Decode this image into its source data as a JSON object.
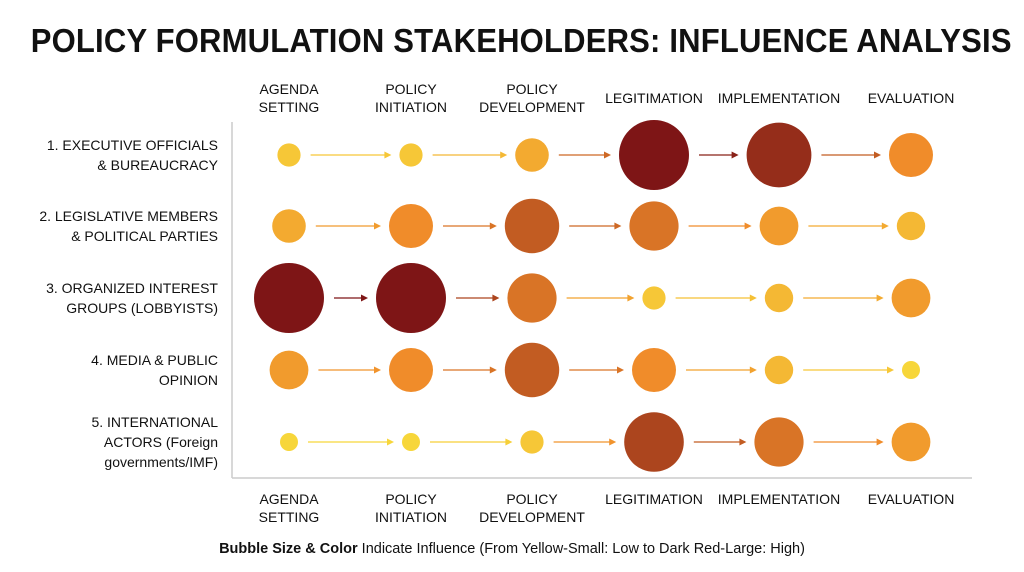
{
  "chart_data": {
    "type": "bubble",
    "title": "POLICY FORMULATION STAKEHOLDERS: INFLUENCE ANALYSIS",
    "stages": [
      [
        "AGENDA",
        "SETTING"
      ],
      [
        "POLICY",
        "INITIATION"
      ],
      [
        "POLICY",
        "DEVELOPMENT"
      ],
      [
        "LEGITIMATION"
      ],
      [
        "IMPLEMENTATION"
      ],
      [
        "EVALUATION"
      ]
    ],
    "stakeholders": [
      {
        "name": [
          "1. EXECUTIVE OFFICIALS",
          "& BUREAUCRACY"
        ],
        "influence": [
          1,
          1,
          3,
          10,
          9,
          5
        ]
      },
      {
        "name": [
          "2. LEGISLATIVE MEMBERS",
          "& POLITICAL PARTIES"
        ],
        "influence": [
          3,
          5,
          7,
          6,
          4,
          2
        ]
      },
      {
        "name": [
          "3. ORGANIZED INTEREST",
          "GROUPS (LOBBYISTS)"
        ],
        "influence": [
          10,
          10,
          6,
          1,
          2,
          4
        ]
      },
      {
        "name": [
          "4. MEDIA & PUBLIC",
          "OPINION"
        ],
        "influence": [
          4,
          5,
          7,
          5,
          2,
          0
        ]
      },
      {
        "name": [
          "5. INTERNATIONAL",
          "ACTORS (Foreign",
          "governments/IMF)"
        ],
        "influence": [
          0,
          0,
          1,
          8,
          6,
          4
        ]
      }
    ],
    "scale": {
      "min": 0,
      "max": 10,
      "low_color": "#f7d63a",
      "mid_color": "#f08c2a",
      "high_color": "#7e1516"
    },
    "legend": {
      "bold": "Bubble Size & Color",
      "text": " Indicate Influence (From Yellow-Small: Low to Dark Red-Large: High)"
    },
    "axis_color": "#cccccc"
  }
}
